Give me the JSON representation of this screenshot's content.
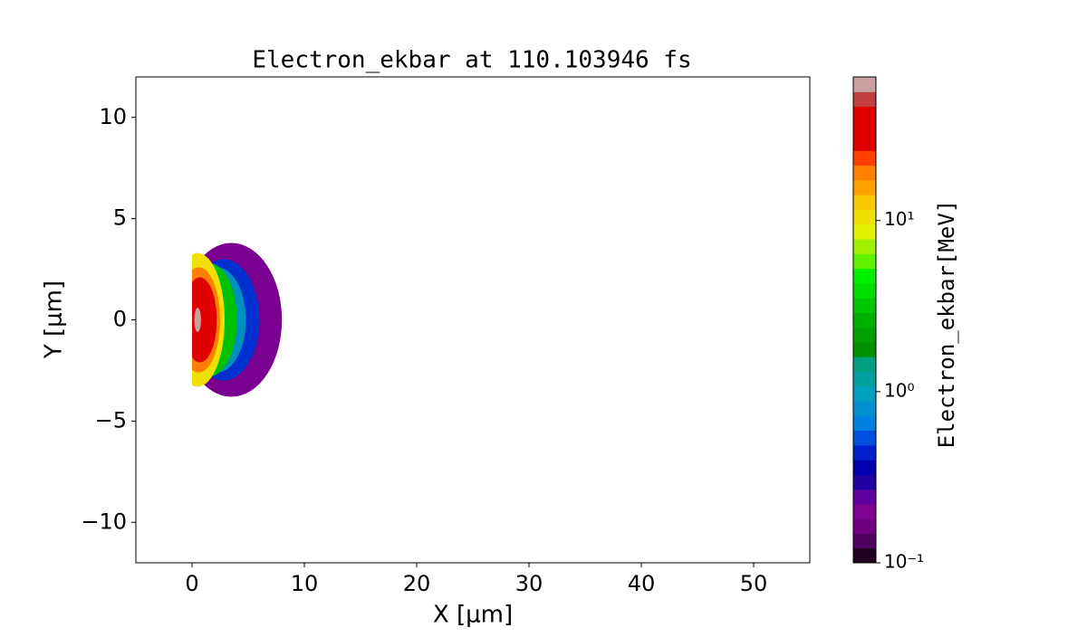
{
  "chart_data": {
    "type": "contour",
    "title": "Electron_ekbar at 110.103946 fs",
    "xlabel": "X [μm]",
    "ylabel": "Y [μm]",
    "colorbar_label": "Electron_ekbar[MeV]",
    "xlim": [
      -5,
      55
    ],
    "ylim": [
      -12,
      12
    ],
    "xticks": [
      0,
      10,
      20,
      30,
      40,
      50
    ],
    "yticks": [
      {
        "value": -10,
        "label": "−10"
      },
      {
        "value": -5,
        "label": "−5"
      },
      0,
      5,
      10
    ],
    "clim": [
      0.1,
      69
    ],
    "clog": true,
    "cticks": [
      {
        "value": 0.1,
        "label": "10⁻¹"
      },
      {
        "value": 1,
        "label": "10⁰"
      },
      {
        "value": 10,
        "label": "10¹"
      }
    ],
    "colormap": [
      "#200020",
      "#500060",
      "#700080",
      "#800090",
      "#6000a0",
      "#2000a0",
      "#0000b0",
      "#0020d0",
      "#0050e0",
      "#0080e0",
      "#0090d0",
      "#00a0c0",
      "#00a0a0",
      "#00a080",
      "#009000",
      "#00a000",
      "#00b000",
      "#00c800",
      "#00e000",
      "#00f000",
      "#60f000",
      "#a0f000",
      "#e0f000",
      "#f0e000",
      "#f8c800",
      "#ffa000",
      "#ff8000",
      "#ff4000",
      "#e00000",
      "#e00000",
      "#e00000",
      "#c04040",
      "#c8a0a0"
    ],
    "contours": [
      {
        "level": 0.15,
        "color": "#7a0090",
        "cx": 3.5,
        "cy": 0,
        "rx": 4.5,
        "ry": 3.8
      },
      {
        "level": 0.4,
        "color": "#0030d0",
        "cx": 2.8,
        "cy": 0,
        "rx": 3.2,
        "ry": 3.0
      },
      {
        "level": 1,
        "color": "#0090c0",
        "cx": 2.2,
        "cy": 0,
        "rx": 2.6,
        "ry": 2.6
      },
      {
        "level": 3,
        "color": "#00c000",
        "cx": 1.5,
        "cy": 0,
        "rx": 2.5,
        "ry": 2.8
      },
      {
        "level": 10,
        "color": "#f0e000",
        "cx": 0.5,
        "cy": 0,
        "rx": 2.4,
        "ry": 3.3
      },
      {
        "level": 30,
        "color": "#ff8000",
        "cx": 0.6,
        "cy": 0,
        "rx": 1.9,
        "ry": 2.6
      },
      {
        "level": 50,
        "color": "#e00000",
        "cx": 0.7,
        "cy": 0,
        "rx": 1.5,
        "ry": 2.1
      },
      {
        "level": 65,
        "color": "#c8a0a0",
        "cx": 0.5,
        "cy": 0,
        "rx": 0.3,
        "ry": 0.6
      }
    ]
  }
}
